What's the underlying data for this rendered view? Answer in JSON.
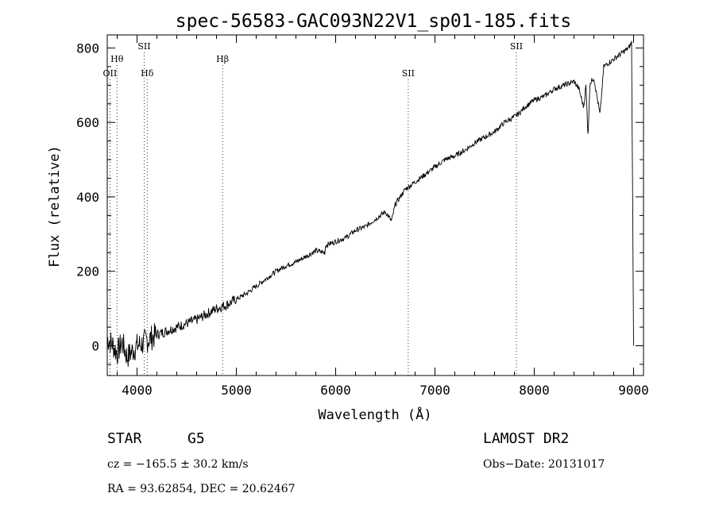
{
  "chart_data": {
    "type": "line",
    "title": "spec-56583-GAC093N22V1_sp01-185.fits",
    "xlabel": "Wavelength (Å)",
    "ylabel": "Flux (relative)",
    "xlim": [
      3700,
      9100
    ],
    "ylim": [
      -80,
      835
    ],
    "xticks": [
      4000,
      5000,
      6000,
      7000,
      8000,
      9000
    ],
    "yticks": [
      0,
      200,
      400,
      600,
      800
    ],
    "grid": false,
    "line_color": "#000000",
    "series": [
      {
        "x": [
          3700,
          3750,
          3800,
          3850,
          3900,
          3950,
          4000,
          4050,
          4100,
          4200,
          4300,
          4400,
          4500,
          4600,
          4700,
          4800,
          4900,
          5000,
          5100,
          5200,
          5300,
          5400,
          5500,
          5600,
          5700,
          5800,
          5890,
          5900,
          6000,
          6100,
          6200,
          6300,
          6400,
          6500,
          6563,
          6600,
          6700,
          6800,
          6900,
          7000,
          7100,
          7200,
          7300,
          7400,
          7500,
          7600,
          7700,
          7800,
          7850,
          7900,
          8000,
          8100,
          8200,
          8300,
          8400,
          8450,
          8498,
          8520,
          8542,
          8560,
          8600,
          8662,
          8700,
          8800,
          8850,
          8900,
          8950,
          8980,
          9000
        ],
        "y": [
          20,
          5,
          -20,
          10,
          -30,
          -15,
          0,
          5,
          15,
          30,
          40,
          50,
          60,
          70,
          85,
          100,
          110,
          125,
          140,
          160,
          180,
          200,
          215,
          225,
          240,
          255,
          250,
          270,
          280,
          290,
          310,
          320,
          340,
          360,
          335,
          380,
          420,
          440,
          460,
          480,
          500,
          510,
          525,
          545,
          560,
          575,
          600,
          615,
          625,
          640,
          660,
          670,
          690,
          700,
          710,
          690,
          640,
          700,
          560,
          705,
          720,
          620,
          750,
          770,
          780,
          790,
          800,
          815,
          0
        ]
      }
    ],
    "spectral_lines": [
      {
        "label": "OII",
        "wavelength": 3727,
        "row": 3
      },
      {
        "label": "Hθ",
        "wavelength": 3798,
        "row": 2
      },
      {
        "label": "SII",
        "wavelength": 4072,
        "row": 1
      },
      {
        "label": "Hδ",
        "wavelength": 4102,
        "row": 3
      },
      {
        "label": "Hβ",
        "wavelength": 4861,
        "row": 2
      },
      {
        "label": "SII",
        "wavelength": 6731,
        "row": 3
      },
      {
        "label": "SII",
        "wavelength": 7820,
        "row": 1
      }
    ]
  },
  "info": {
    "object_class": "STAR",
    "subclass": "G5",
    "survey": "LAMOST DR2",
    "cz": "cz = −165.5 ± 30.2 km/s",
    "obs_date": "Obs−Date: 20131017",
    "coords": "RA =  93.62854, DEC =  20.62467"
  }
}
